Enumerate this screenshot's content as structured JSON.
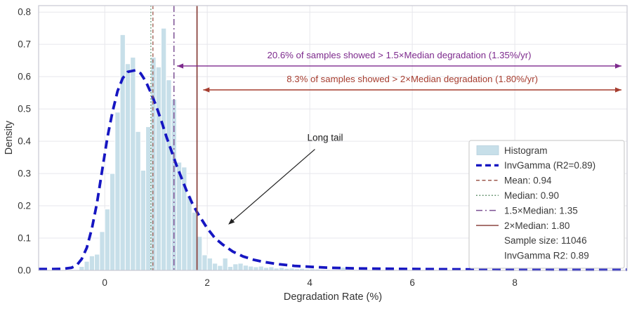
{
  "chart_data": {
    "type": "bar",
    "subtype": "histogram-with-fitted-curve",
    "title": "",
    "xlabel": "Degradation Rate (%)",
    "ylabel": "Density",
    "xlim": [
      -1.29,
      10.19
    ],
    "ylim": [
      0,
      0.82
    ],
    "x_ticks": [
      0,
      2,
      4,
      6,
      8
    ],
    "y_tick_labels": [
      "0.0",
      "0.1",
      "0.2",
      "0.3",
      "0.4",
      "0.5",
      "0.6",
      "0.7",
      "0.8"
    ],
    "grid": true,
    "colors": {
      "histogram_fill": "#c7dfe9",
      "histogram_edge": "#ffffff",
      "curve": "#1616c2",
      "mean_line": "#9e5a4e",
      "median_line": "#5f8f6a",
      "median15_line": "#7b4f93",
      "median2_line": "#8c4540",
      "annotation_purple": "#7d2a8d",
      "annotation_red": "#a63d2f",
      "grid_line": "#e7e7ec",
      "frame": "#c8c8d2",
      "tick_text": "#333333",
      "legend_text": "#3a3a3a"
    },
    "histogram": {
      "label": "Histogram",
      "bin_start": -0.5,
      "bin_width": 0.1,
      "heights": [
        0.012,
        0.028,
        0.045,
        0.05,
        0.12,
        0.19,
        0.3,
        0.49,
        0.73,
        0.64,
        0.66,
        0.43,
        0.31,
        0.445,
        0.66,
        0.63,
        0.75,
        0.59,
        0.53,
        0.335,
        0.32,
        0.23,
        0.18,
        0.105,
        0.048,
        0.038,
        0.022,
        0.015,
        0.038,
        0.012,
        0.02,
        0.022,
        0.016,
        0.013,
        0.011,
        0.013,
        0.009,
        0.011,
        0.007,
        0.009,
        0.006,
        0.007,
        0.005,
        0.006,
        0.004,
        0.005,
        0.004,
        0.003,
        0.003,
        0.002
      ],
      "extra_bins": [
        {
          "center": 4.65,
          "height": 0.01
        }
      ]
    },
    "curve": {
      "label": "InvGamma (R2=0.89)",
      "points": [
        [
          -1.29,
          0.004
        ],
        [
          -1.0,
          0.004
        ],
        [
          -0.8,
          0.005
        ],
        [
          -0.65,
          0.008
        ],
        [
          -0.55,
          0.015
        ],
        [
          -0.45,
          0.035
        ],
        [
          -0.35,
          0.07
        ],
        [
          -0.25,
          0.13
        ],
        [
          -0.15,
          0.21
        ],
        [
          -0.05,
          0.31
        ],
        [
          0.05,
          0.41
        ],
        [
          0.15,
          0.49
        ],
        [
          0.25,
          0.555
        ],
        [
          0.35,
          0.595
        ],
        [
          0.45,
          0.615
        ],
        [
          0.6,
          0.62
        ],
        [
          0.7,
          0.61
        ],
        [
          0.8,
          0.585
        ],
        [
          0.9,
          0.55
        ],
        [
          1.0,
          0.51
        ],
        [
          1.1,
          0.465
        ],
        [
          1.2,
          0.415
        ],
        [
          1.3,
          0.37
        ],
        [
          1.4,
          0.325
        ],
        [
          1.5,
          0.285
        ],
        [
          1.6,
          0.245
        ],
        [
          1.7,
          0.21
        ],
        [
          1.8,
          0.18
        ],
        [
          1.9,
          0.155
        ],
        [
          2.0,
          0.13
        ],
        [
          2.15,
          0.1
        ],
        [
          2.3,
          0.08
        ],
        [
          2.5,
          0.058
        ],
        [
          2.7,
          0.043
        ],
        [
          2.9,
          0.033
        ],
        [
          3.1,
          0.026
        ],
        [
          3.4,
          0.019
        ],
        [
          3.7,
          0.014
        ],
        [
          4.0,
          0.011
        ],
        [
          4.4,
          0.008
        ],
        [
          4.9,
          0.006
        ],
        [
          5.5,
          0.005
        ],
        [
          6.2,
          0.004
        ],
        [
          7.0,
          0.003
        ],
        [
          8.0,
          0.0025
        ],
        [
          9.0,
          0.002
        ],
        [
          10.19,
          0.002
        ]
      ]
    },
    "stats": {
      "mean": 0.94,
      "median": 0.9,
      "median_1_5x": 1.35,
      "median_2x": 1.8,
      "sample_size": 11046,
      "invgamma_r2": 0.89
    },
    "vlines": [
      {
        "name": "median",
        "label": "Median: 0.90",
        "x": 0.9,
        "style": "dotted",
        "width": 1.3
      },
      {
        "name": "mean",
        "label": "Mean: 0.94",
        "x": 0.94,
        "style": "dashed",
        "width": 1.3
      },
      {
        "name": "median15",
        "label": "1.5×Median: 1.35",
        "x": 1.35,
        "style": "dashdot",
        "width": 1.5
      },
      {
        "name": "median2",
        "label": "2×Median: 1.80",
        "x": 1.8,
        "style": "solid",
        "width": 1.8
      }
    ],
    "arrow_annotations": [
      {
        "name": "gt-1-5x-median",
        "text": "20.6% of samples showed > 1.5×Median degradation (1.35%/yr)",
        "color_key": "annotation_purple",
        "y": 0.633,
        "x1": 1.41,
        "x2": 10.08
      },
      {
        "name": "gt-2x-median",
        "text": "8.3% of samples showed > 2×Median degradation (1.80%/yr)",
        "color_key": "annotation_red",
        "y": 0.559,
        "x1": 1.92,
        "x2": 10.08
      }
    ],
    "pointer_annotation": {
      "text": "Long tail",
      "color": "#1a1a1a",
      "arrow_color": "#222222",
      "tail": [
        4.1,
        0.375
      ],
      "tip": [
        2.41,
        0.142
      ],
      "text_pos": [
        4.3,
        0.41
      ]
    },
    "legend": {
      "position": "lower right",
      "items": [
        {
          "label": "Histogram",
          "marker": "patch"
        },
        {
          "label": "InvGamma (R2=0.89)",
          "marker": "line",
          "style": "dashed-bold",
          "color_key": "curve"
        },
        {
          "label": "Mean: 0.94",
          "marker": "line",
          "style": "dashed",
          "color_key": "mean_line"
        },
        {
          "label": "Median: 0.90",
          "marker": "line",
          "style": "dotted",
          "color_key": "median_line"
        },
        {
          "label": "1.5×Median: 1.35",
          "marker": "line",
          "style": "dashdot",
          "color_key": "median15_line"
        },
        {
          "label": "2×Median: 1.80",
          "marker": "line",
          "style": "solid",
          "color_key": "median2_line"
        },
        {
          "label": "Sample size: 11046",
          "marker": "none"
        },
        {
          "label": "InvGamma R2: 0.89",
          "marker": "none"
        }
      ]
    }
  }
}
